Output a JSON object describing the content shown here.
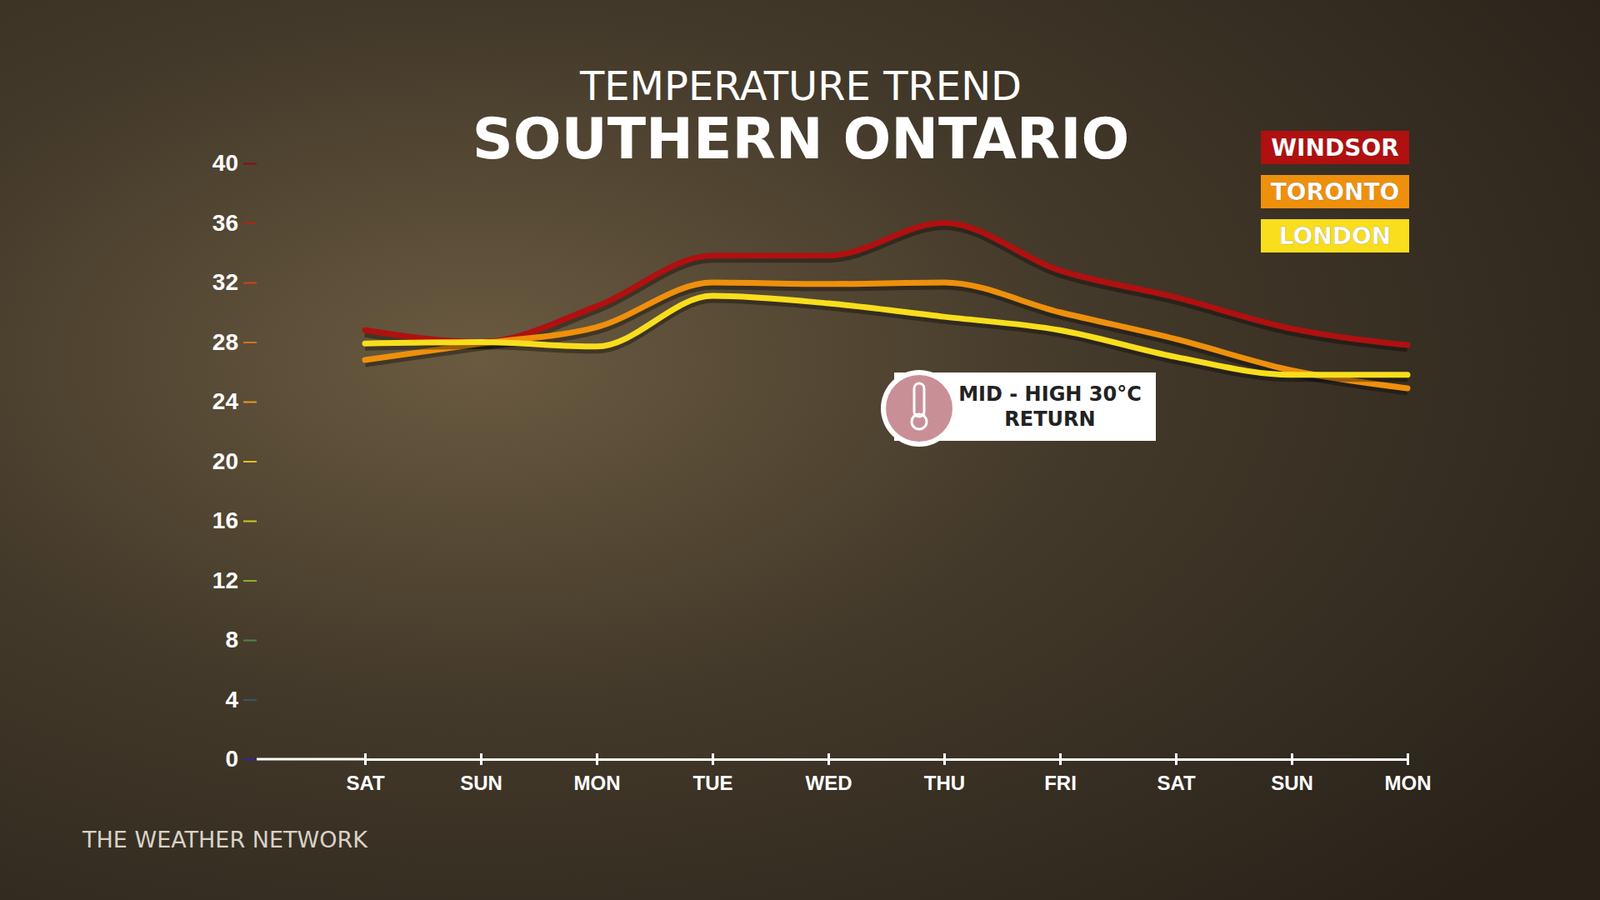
{
  "chart_data": {
    "type": "line",
    "subtitle": "TEMPERATURE TREND",
    "title": "SOUTHERN ONTARIO",
    "source": "THE WEATHER NETWORK",
    "annotation": "MID - HIGH 30°C RETURN",
    "categories": [
      "SAT",
      "SUN",
      "MON",
      "TUE",
      "WED",
      "THU",
      "FRI",
      "SAT",
      "SUN",
      "MON"
    ],
    "series": [
      {
        "name": "WINDSOR",
        "color": "#b01010",
        "values": [
          28.8,
          28,
          30.4,
          33.8,
          33.8,
          36,
          32.8,
          31,
          28.9,
          27.8
        ]
      },
      {
        "name": "TORONTO",
        "color": "#ee900c",
        "values": [
          26.8,
          27.9,
          29,
          32,
          31.9,
          32,
          30,
          28.2,
          26.1,
          24.9
        ]
      },
      {
        "name": "LONDON",
        "color": "#f8de1c",
        "values": [
          27.9,
          28,
          27.7,
          31.1,
          30.6,
          29.7,
          28.8,
          27,
          25.8,
          25.8
        ]
      }
    ],
    "ylim": [
      0,
      40
    ],
    "yticks": [
      0,
      4,
      8,
      12,
      16,
      20,
      24,
      28,
      32,
      36,
      40
    ],
    "grid": false,
    "legend": "top-right"
  }
}
